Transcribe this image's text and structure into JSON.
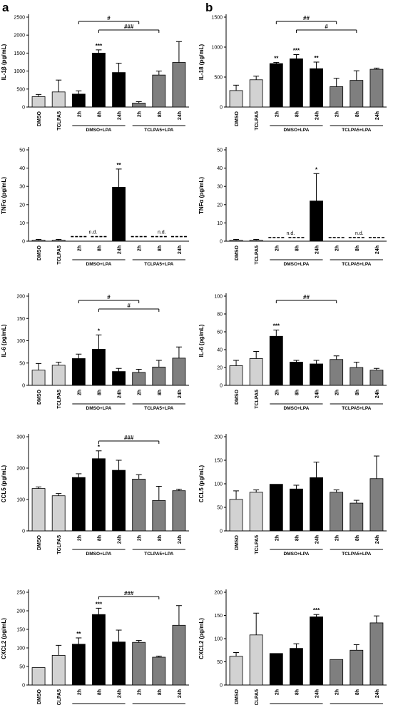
{
  "panel_labels": [
    "a",
    "b"
  ],
  "categories": [
    "DMSO",
    "TCLPA5",
    "2h",
    "8h",
    "24h",
    "2h",
    "8h",
    "24h"
  ],
  "groups": [
    "DMSO+LPA",
    "TCLPA5+LPA"
  ],
  "colors": {
    "control": "#d2d2d2",
    "dmso_lpa": "#000000",
    "tclpa5_lpa": "#7f7f7f"
  },
  "chart_data": [
    {
      "type": "bar",
      "panel": "a",
      "row": 0,
      "ylabel": "IL-1β (pg/mL)",
      "ylim": [
        0,
        2500
      ],
      "yticks": [
        "0",
        "500",
        "1000",
        "1500",
        "2000",
        "2500"
      ],
      "values": [
        290,
        420,
        360,
        1500,
        960,
        110,
        890,
        1240
      ],
      "errors": [
        60,
        330,
        90,
        90,
        260,
        40,
        110,
        580
      ],
      "stars": [
        "",
        "",
        "",
        "***",
        "",
        "",
        "",
        ""
      ],
      "brackets": [
        {
          "from": 2,
          "to": 5,
          "label": "#"
        },
        {
          "from": 3,
          "to": 6,
          "label": "###"
        }
      ],
      "nd_labels": []
    },
    {
      "type": "bar",
      "panel": "b",
      "row": 0,
      "ylabel": "IL-18 (pg/mL)",
      "ylim": [
        0,
        1500
      ],
      "yticks": [
        "0",
        "500",
        "1000",
        "1500"
      ],
      "values": [
        275,
        455,
        725,
        805,
        640,
        340,
        445,
        630
      ],
      "errors": [
        90,
        60,
        20,
        70,
        110,
        140,
        160,
        20
      ],
      "stars": [
        "",
        "",
        "**",
        "***",
        "**",
        "",
        "",
        ""
      ],
      "brackets": [
        {
          "from": 2,
          "to": 5,
          "label": "##"
        },
        {
          "from": 3,
          "to": 6,
          "label": "#"
        }
      ],
      "nd_labels": []
    },
    {
      "type": "bar",
      "panel": "a",
      "row": 1,
      "ylabel": "TNFα (pg/mL)",
      "ylim": [
        0,
        50
      ],
      "yticks": [
        "0",
        "10",
        "20",
        "30",
        "40",
        "50"
      ],
      "values": [
        0.5,
        0.5,
        2.5,
        2.5,
        29.5,
        2.5,
        2.5,
        2.5
      ],
      "errors": [
        0.5,
        0.5,
        0,
        0,
        10,
        0,
        0,
        0
      ],
      "nd_bars": [
        false,
        false,
        true,
        true,
        false,
        true,
        true,
        true
      ],
      "stars": [
        "",
        "",
        "",
        "",
        "**",
        "",
        "",
        ""
      ],
      "brackets": [],
      "nd_labels": [
        "n.d.",
        "n.d."
      ]
    },
    {
      "type": "bar",
      "panel": "b",
      "row": 1,
      "ylabel": "TNFα (pg/mL)",
      "ylim": [
        0,
        50
      ],
      "yticks": [
        "0",
        "10",
        "20",
        "30",
        "40",
        "50"
      ],
      "values": [
        0.5,
        0.5,
        2,
        2,
        22,
        2,
        2,
        2
      ],
      "errors": [
        0.5,
        0.5,
        0,
        0,
        15,
        0,
        0,
        0
      ],
      "nd_bars": [
        false,
        false,
        true,
        true,
        false,
        true,
        true,
        true
      ],
      "stars": [
        "",
        "",
        "",
        "",
        "*",
        "",
        "",
        ""
      ],
      "brackets": [],
      "nd_labels": [
        "n.d.",
        "n.d."
      ]
    },
    {
      "type": "bar",
      "panel": "a",
      "row": 2,
      "ylabel": "IL-6 (pg/mL)",
      "ylim": [
        0,
        200
      ],
      "yticks": [
        "0",
        "50",
        "100",
        "150",
        "200"
      ],
      "values": [
        34,
        45,
        60,
        81,
        31,
        29,
        41,
        61
      ],
      "errors": [
        15,
        7,
        10,
        32,
        7,
        7,
        15,
        25
      ],
      "stars": [
        "",
        "",
        "",
        "*",
        "",
        "",
        "",
        ""
      ],
      "brackets": [
        {
          "from": 2,
          "to": 5,
          "label": "#"
        },
        {
          "from": 3,
          "to": 6,
          "label": "#"
        }
      ],
      "nd_labels": []
    },
    {
      "type": "bar",
      "panel": "b",
      "row": 2,
      "ylabel": "IL-6 (pg/mL)",
      "ylim": [
        0,
        100
      ],
      "yticks": [
        "0",
        "20",
        "40",
        "60",
        "80",
        "100"
      ],
      "values": [
        22,
        30,
        55,
        26,
        24,
        29,
        20,
        17
      ],
      "errors": [
        6,
        8,
        7,
        2,
        4,
        4,
        6,
        2
      ],
      "stars": [
        "",
        "",
        "***",
        "",
        "",
        "",
        "",
        ""
      ],
      "brackets": [
        {
          "from": 2,
          "to": 5,
          "label": "##"
        }
      ],
      "nd_labels": []
    },
    {
      "type": "bar",
      "panel": "a",
      "row": 3,
      "ylabel": "CCL5 (pg/mL)",
      "ylim": [
        0,
        300
      ],
      "yticks": [
        "0",
        "100",
        "200",
        "300"
      ],
      "values": [
        135,
        112,
        170,
        230,
        193,
        165,
        97,
        128
      ],
      "errors": [
        5,
        7,
        12,
        25,
        32,
        14,
        45,
        5
      ],
      "stars": [
        "",
        "",
        "",
        "*",
        "",
        "",
        "",
        ""
      ],
      "brackets": [
        {
          "from": 3,
          "to": 6,
          "label": "###"
        }
      ],
      "nd_labels": []
    },
    {
      "type": "bar",
      "panel": "b",
      "row": 3,
      "ylabel": "CCL5 (pg/mL)",
      "ylim": [
        0,
        200
      ],
      "yticks": [
        "0",
        "50",
        "100",
        "150",
        "200"
      ],
      "values": [
        67,
        82,
        99,
        89,
        113,
        82,
        59,
        111
      ],
      "errors": [
        18,
        5,
        0,
        8,
        33,
        5,
        6,
        48
      ],
      "stars": [
        "",
        "",
        "",
        "",
        "",
        "",
        "",
        ""
      ],
      "brackets": [],
      "nd_labels": []
    },
    {
      "type": "bar",
      "panel": "a",
      "row": 4,
      "ylabel": "CXCL2 (pg/mL)",
      "ylim": [
        0,
        250
      ],
      "yticks": [
        "0",
        "50",
        "100",
        "150",
        "200",
        "250"
      ],
      "values": [
        47,
        80,
        110,
        190,
        116,
        115,
        75,
        161
      ],
      "errors": [
        0,
        27,
        17,
        17,
        32,
        5,
        3,
        53
      ],
      "stars": [
        "",
        "",
        "**",
        "***",
        "",
        "",
        "",
        ""
      ],
      "brackets": [
        {
          "from": 3,
          "to": 6,
          "label": "###"
        }
      ],
      "nd_labels": []
    },
    {
      "type": "bar",
      "panel": "b",
      "row": 4,
      "ylabel": "CXCL2 (pg/mL)",
      "ylim": [
        0,
        200
      ],
      "yticks": [
        "0",
        "50",
        "100",
        "150",
        "200"
      ],
      "values": [
        62,
        108,
        68,
        79,
        147,
        55,
        75,
        134
      ],
      "errors": [
        8,
        47,
        0,
        10,
        5,
        0,
        12,
        15
      ],
      "stars": [
        "",
        "",
        "",
        "",
        "***",
        "",
        "",
        ""
      ],
      "brackets": [],
      "nd_labels": []
    }
  ]
}
